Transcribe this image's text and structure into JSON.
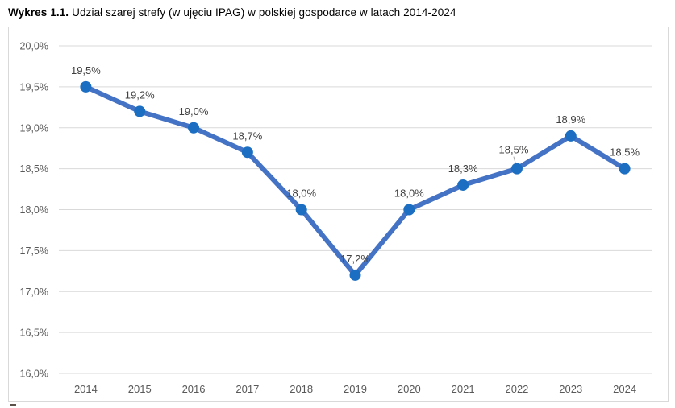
{
  "title": {
    "prefix": "Wykres 1.1.",
    "text": "Udział szarej strefy (w ujęciu IPAG) w polskiej gospodarce w latach 2014-2024"
  },
  "colors": {
    "line": "#4472C4",
    "marker": "#1B6EC2",
    "grid": "#D9D9D9",
    "frame_border": "#D9D9D9",
    "axis_text": "#595959",
    "data_label_text": "#404040",
    "leader_line": "#A6A6A6",
    "background": "#FFFFFF"
  },
  "chart_data": {
    "type": "line",
    "title": "Wykres 1.1. Udział szarej strefy (w ujęciu IPAG) w polskiej gospodarce w latach 2014-2024",
    "categories": [
      "2014",
      "2015",
      "2016",
      "2017",
      "2018",
      "2019",
      "2020",
      "2021",
      "2022",
      "2023",
      "2024"
    ],
    "series": [
      {
        "name": "Udział szarej strefy",
        "values": [
          19.5,
          19.2,
          19.0,
          18.7,
          18.0,
          17.2,
          18.0,
          18.3,
          18.5,
          18.9,
          18.5
        ],
        "data_labels": [
          "19,5%",
          "19,2%",
          "19,0%",
          "18,7%",
          "18,0%",
          "17,2%",
          "18,0%",
          "18,3%",
          "18,5%",
          "18,9%",
          "18,5%"
        ]
      }
    ],
    "xlabel": "",
    "ylabel": "",
    "ylim": [
      16.0,
      20.0
    ],
    "y_tick_step": 0.5,
    "y_tick_labels": [
      "20,0%",
      "19,5%",
      "19,0%",
      "18,5%",
      "18,0%",
      "17,5%",
      "17,0%",
      "16,5%",
      "16,0%"
    ],
    "grid": "horizontal",
    "legend": "none",
    "markers": true,
    "data_labels_position": "above",
    "leader_line_point_index": 8
  }
}
